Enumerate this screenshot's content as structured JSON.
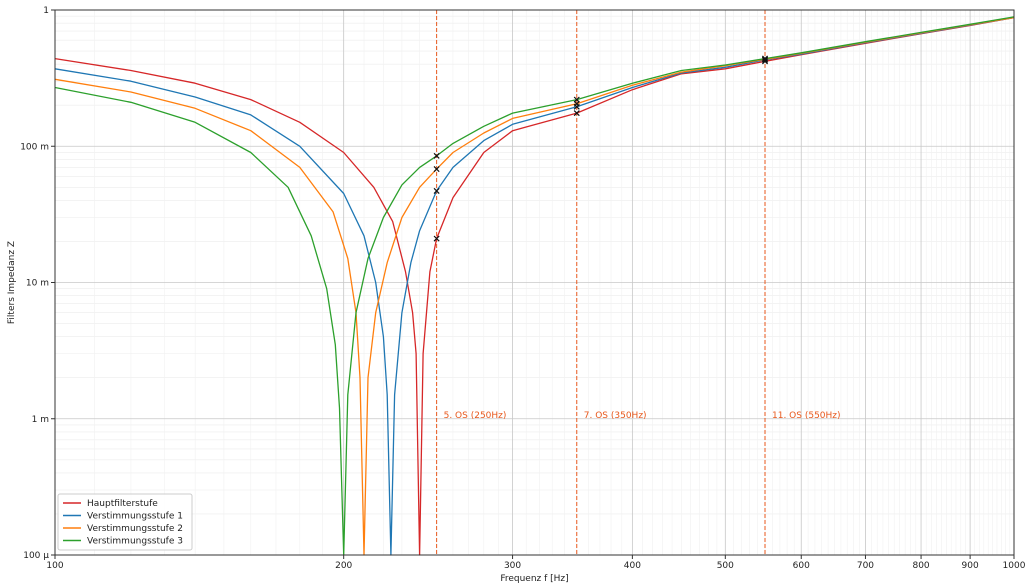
{
  "chart_data": {
    "type": "line",
    "xscale": "log",
    "yscale": "log",
    "xlabel": "Frequenz f [Hz]",
    "ylabel": "Filters Impedanz Z",
    "xlim": [
      100,
      1000
    ],
    "ylim": [
      0.0001,
      1
    ],
    "grid": true,
    "legend_position": "lower-left",
    "x_ticks": [
      {
        "value": 100,
        "label": "100"
      },
      {
        "value": 200,
        "label": "200"
      },
      {
        "value": 300,
        "label": "300"
      },
      {
        "value": 400,
        "label": "400"
      },
      {
        "value": 500,
        "label": "500"
      },
      {
        "value": 600,
        "label": "600"
      },
      {
        "value": 700,
        "label": "700"
      },
      {
        "value": 800,
        "label": "800"
      },
      {
        "value": 900,
        "label": "900"
      },
      {
        "value": 1000,
        "label": "1000"
      }
    ],
    "y_ticks": [
      {
        "value": 0.0001,
        "label": "100 µ"
      },
      {
        "value": 0.001,
        "label": "1 m"
      },
      {
        "value": 0.01,
        "label": "10 m"
      },
      {
        "value": 0.1,
        "label": "100 m"
      },
      {
        "value": 1,
        "label": "1"
      }
    ],
    "series": [
      {
        "name": "Hauptfilterstufe",
        "color": "#d62728",
        "x": [
          100,
          120,
          140,
          160,
          180,
          200,
          215,
          225,
          232,
          236,
          238,
          240,
          242,
          246,
          250,
          260,
          280,
          300,
          350,
          400,
          450,
          500,
          550,
          600,
          700,
          800,
          900,
          1000
        ],
        "y": [
          0.44,
          0.36,
          0.29,
          0.22,
          0.15,
          0.09,
          0.05,
          0.028,
          0.012,
          0.006,
          0.003,
          0.0001,
          0.003,
          0.012,
          0.021,
          0.042,
          0.09,
          0.13,
          0.175,
          0.26,
          0.34,
          0.37,
          0.42,
          0.47,
          0.57,
          0.67,
          0.77,
          0.88
        ]
      },
      {
        "name": "Verstimmungsstufe 1",
        "color": "#1f77b4",
        "x": [
          100,
          120,
          140,
          160,
          180,
          200,
          210,
          216,
          220,
          222,
          224,
          226,
          230,
          235,
          240,
          250,
          260,
          280,
          300,
          350,
          400,
          450,
          500,
          550,
          600,
          700,
          800,
          900,
          1000
        ],
        "y": [
          0.37,
          0.3,
          0.23,
          0.17,
          0.1,
          0.045,
          0.022,
          0.01,
          0.004,
          0.0015,
          0.0001,
          0.0015,
          0.006,
          0.014,
          0.024,
          0.047,
          0.07,
          0.11,
          0.145,
          0.195,
          0.27,
          0.345,
          0.38,
          0.43,
          0.475,
          0.575,
          0.675,
          0.775,
          0.88
        ]
      },
      {
        "name": "Verstimmungsstufe 2",
        "color": "#ff7f0e",
        "x": [
          100,
          120,
          140,
          160,
          180,
          195,
          202,
          206,
          208,
          210,
          212,
          216,
          222,
          230,
          240,
          250,
          260,
          280,
          300,
          350,
          400,
          450,
          500,
          550,
          600,
          700,
          800,
          900,
          1000
        ],
        "y": [
          0.31,
          0.25,
          0.19,
          0.13,
          0.07,
          0.033,
          0.015,
          0.006,
          0.002,
          0.0001,
          0.002,
          0.006,
          0.014,
          0.03,
          0.05,
          0.068,
          0.09,
          0.125,
          0.16,
          0.205,
          0.28,
          0.35,
          0.39,
          0.435,
          0.48,
          0.58,
          0.68,
          0.78,
          0.88
        ]
      },
      {
        "name": "Verstimmungsstufe 3",
        "color": "#2ca02c",
        "x": [
          100,
          120,
          140,
          160,
          175,
          185,
          192,
          196,
          198,
          200,
          202,
          206,
          212,
          220,
          230,
          240,
          250,
          260,
          280,
          300,
          350,
          400,
          450,
          500,
          550,
          600,
          700,
          800,
          900,
          1000
        ],
        "y": [
          0.27,
          0.21,
          0.15,
          0.09,
          0.05,
          0.022,
          0.009,
          0.0035,
          0.0012,
          0.0001,
          0.0015,
          0.006,
          0.015,
          0.03,
          0.052,
          0.07,
          0.085,
          0.105,
          0.14,
          0.175,
          0.22,
          0.29,
          0.36,
          0.395,
          0.44,
          0.485,
          0.585,
          0.685,
          0.785,
          0.89
        ]
      }
    ],
    "vlines": [
      {
        "x": 250,
        "label": "5. OS (250Hz)",
        "color": "#e8581c"
      },
      {
        "x": 350,
        "label": "7. OS (350Hz)",
        "color": "#e8581c"
      },
      {
        "x": 550,
        "label": "11. OS (550Hz)",
        "color": "#e8581c"
      }
    ],
    "markers": [
      {
        "x": 250,
        "y": 0.021
      },
      {
        "x": 250,
        "y": 0.047
      },
      {
        "x": 250,
        "y": 0.068
      },
      {
        "x": 250,
        "y": 0.085
      },
      {
        "x": 350,
        "y": 0.175
      },
      {
        "x": 350,
        "y": 0.195
      },
      {
        "x": 350,
        "y": 0.205
      },
      {
        "x": 350,
        "y": 0.22
      },
      {
        "x": 550,
        "y": 0.42
      },
      {
        "x": 550,
        "y": 0.43
      },
      {
        "x": 550,
        "y": 0.435
      },
      {
        "x": 550,
        "y": 0.44
      }
    ]
  }
}
